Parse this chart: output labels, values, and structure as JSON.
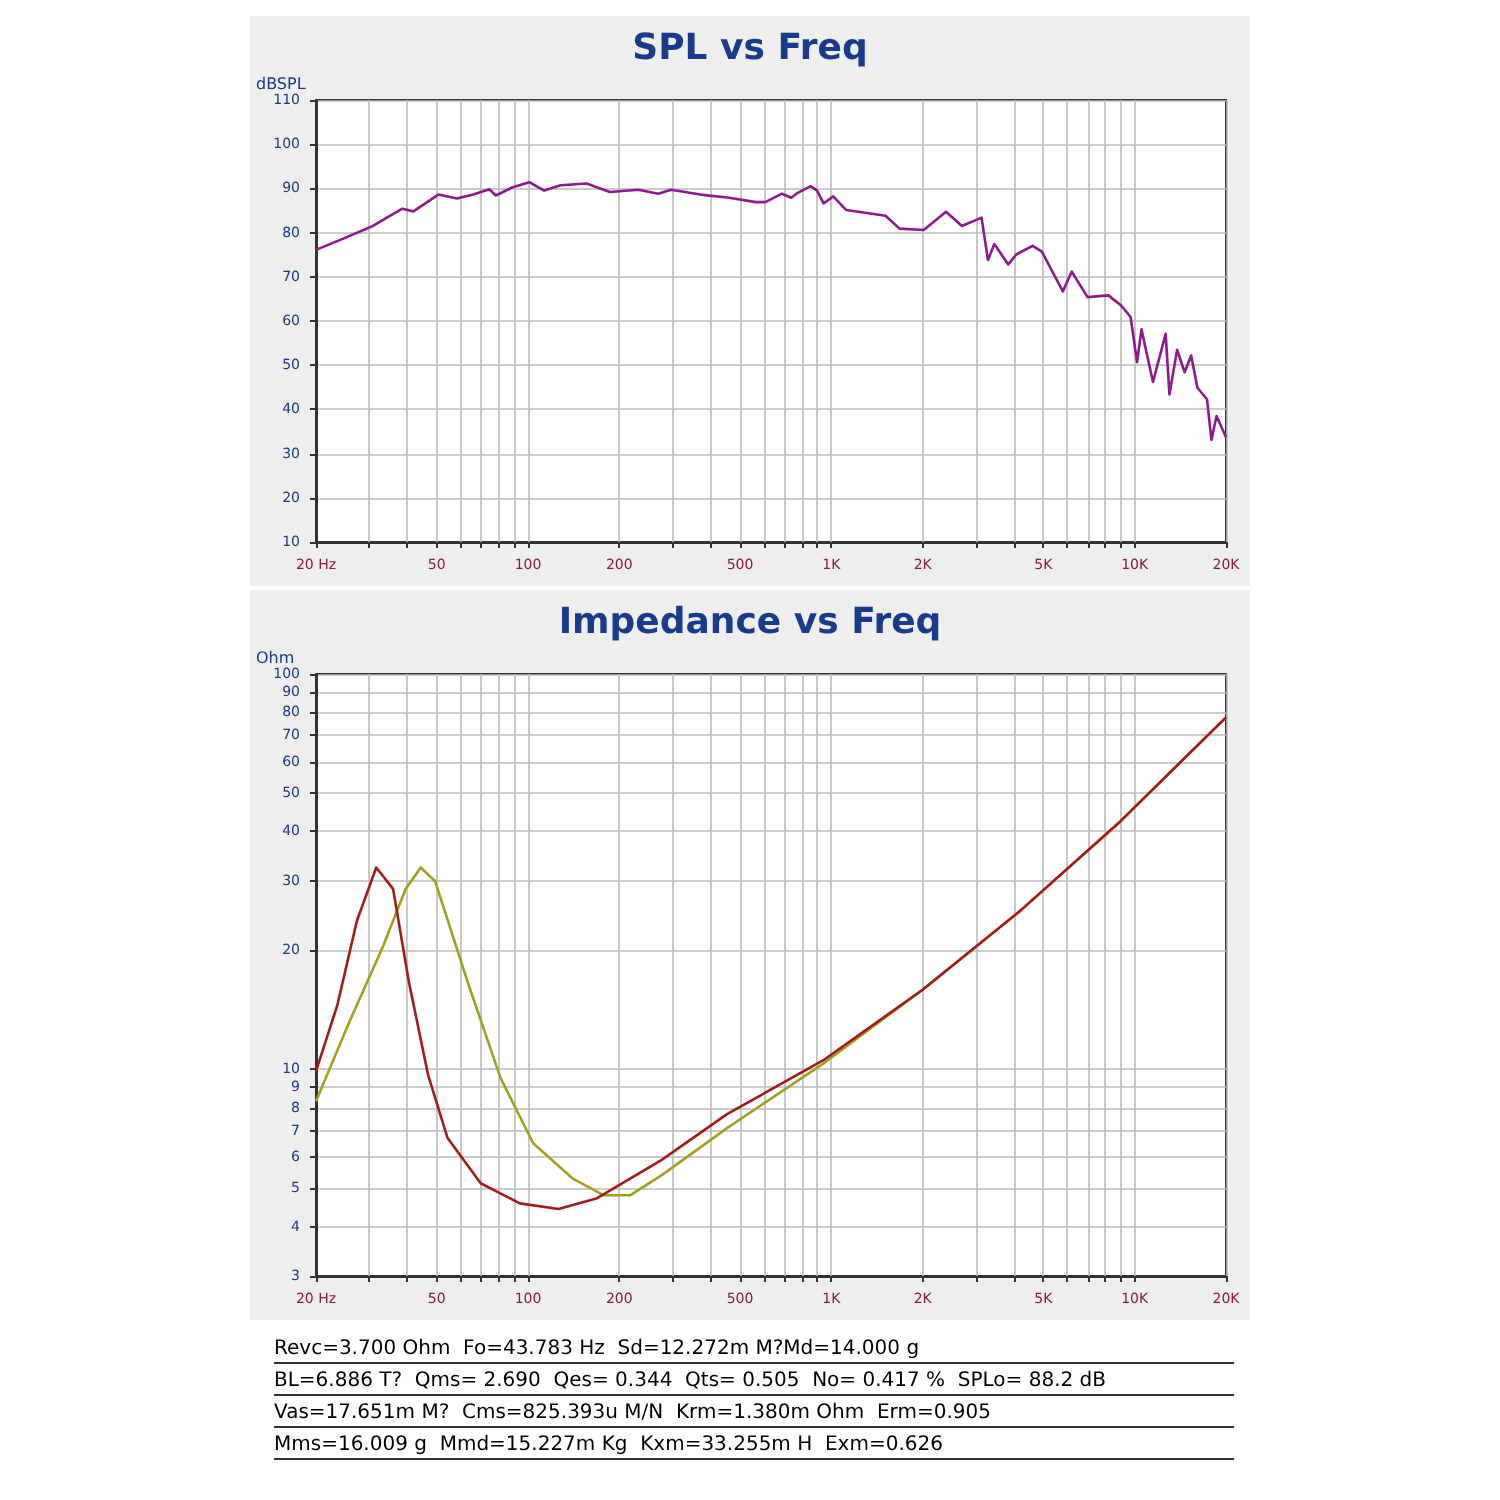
{
  "chart_data": [
    {
      "type": "line",
      "title": "SPL vs Freq",
      "ylabel": "dBSPL",
      "log": "x",
      "grid": true,
      "marker": "none",
      "line_style": "solid",
      "xlim": [
        20,
        20000
      ],
      "ylim": [
        10,
        110
      ],
      "xticks": [
        {
          "value": 20,
          "label": "20 Hz"
        },
        {
          "value": 30,
          "label": null
        },
        {
          "value": 40,
          "label": null
        },
        50,
        {
          "value": 60,
          "label": null
        },
        {
          "value": 70,
          "label": null
        },
        {
          "value": 80,
          "label": null
        },
        {
          "value": 90,
          "label": null
        },
        100,
        200,
        {
          "value": 300,
          "label": null
        },
        {
          "value": 400,
          "label": null
        },
        500,
        {
          "value": 600,
          "label": null
        },
        {
          "value": 700,
          "label": null
        },
        {
          "value": 800,
          "label": null
        },
        {
          "value": 900,
          "label": null
        },
        {
          "value": 1000,
          "label": "1K"
        },
        {
          "value": 2000,
          "label": "2K"
        },
        {
          "value": 3000,
          "label": null
        },
        {
          "value": 4000,
          "label": null
        },
        {
          "value": 5000,
          "label": "5K"
        },
        {
          "value": 6000,
          "label": null
        },
        {
          "value": 7000,
          "label": null
        },
        {
          "value": 8000,
          "label": null
        },
        {
          "value": 9000,
          "label": null
        },
        {
          "value": 10000,
          "label": "10K"
        },
        {
          "value": 20000,
          "label": "20K"
        }
      ],
      "yticks": [
        10,
        20,
        30,
        40,
        50,
        60,
        70,
        80,
        90,
        100,
        110
      ],
      "series": [
        {
          "color": "#8b1a8b",
          "x": [
            20,
            24.7,
            30.8,
            38.5,
            41.9,
            50.6,
            58.3,
            66,
            74.6,
            78.3,
            88.6,
            101,
            113,
            128,
            156,
            186,
            231,
            269,
            296,
            370,
            461,
            564,
            606,
            687,
            737,
            775,
            855,
            897,
            943,
            1014,
            1120,
            1508,
            1679,
            2016,
            2388,
            2694,
            3127,
            3283,
            3446,
            3830,
            4079,
            4606,
            4943,
            5797,
            6199,
            6989,
            8195,
            9020,
            9695,
            10180,
            10530,
            11490,
            12650,
            13020,
            13800,
            14610,
            15350,
            16100,
            17310,
            17910,
            18610,
            20000
          ],
          "values": [
            76.1,
            78.7,
            81.5,
            85.4,
            84.8,
            88.6,
            87.7,
            88.6,
            89.8,
            88.4,
            90.2,
            91.4,
            89.5,
            90.7,
            91.1,
            89.2,
            89.7,
            88.8,
            89.7,
            88.6,
            87.9,
            86.9,
            86.9,
            88.8,
            87.9,
            89,
            90.5,
            89.5,
            86.6,
            88.2,
            85.1,
            83.8,
            80.9,
            80.6,
            84.7,
            81.5,
            83.4,
            73.8,
            77.4,
            72.8,
            75.1,
            77,
            75.7,
            66.7,
            71.2,
            65.4,
            65.8,
            63.5,
            60.9,
            50.7,
            58.1,
            46.2,
            57.1,
            43.4,
            53.5,
            48.4,
            52.2,
            44.9,
            42.3,
            33.1,
            38.5,
            33.7
          ]
        }
      ]
    },
    {
      "type": "line",
      "title": "Impedance vs Freq",
      "ylabel": "Ohm",
      "log": "xy",
      "grid": true,
      "marker": "none",
      "line_style": "solid",
      "xlim": [
        20,
        20000
      ],
      "ylim": [
        3,
        100
      ],
      "xticks": [
        {
          "value": 20,
          "label": "20 Hz"
        },
        {
          "value": 30,
          "label": null
        },
        {
          "value": 40,
          "label": null
        },
        50,
        {
          "value": 60,
          "label": null
        },
        {
          "value": 70,
          "label": null
        },
        {
          "value": 80,
          "label": null
        },
        {
          "value": 90,
          "label": null
        },
        100,
        200,
        {
          "value": 300,
          "label": null
        },
        {
          "value": 400,
          "label": null
        },
        500,
        {
          "value": 600,
          "label": null
        },
        {
          "value": 700,
          "label": null
        },
        {
          "value": 800,
          "label": null
        },
        {
          "value": 900,
          "label": null
        },
        {
          "value": 1000,
          "label": "1K"
        },
        {
          "value": 2000,
          "label": "2K"
        },
        {
          "value": 3000,
          "label": null
        },
        {
          "value": 4000,
          "label": null
        },
        {
          "value": 5000,
          "label": "5K"
        },
        {
          "value": 6000,
          "label": null
        },
        {
          "value": 7000,
          "label": null
        },
        {
          "value": 8000,
          "label": null
        },
        {
          "value": 9000,
          "label": null
        },
        {
          "value": 10000,
          "label": "10K"
        },
        {
          "value": 20000,
          "label": "20K"
        }
      ],
      "yticks": [
        3,
        4,
        5,
        6,
        7,
        8,
        9,
        10,
        20,
        30,
        40,
        50,
        60,
        70,
        80,
        90,
        100
      ],
      "series": [
        {
          "color": "#a0a020",
          "x": [
            20,
            25.9,
            33.2,
            39.5,
            44.3,
            49.4,
            63.3,
            81.2,
            104,
            140,
            178,
            217,
            276,
            453,
            951,
            1999,
            4200,
            8830,
            20000
          ],
          "values": [
            8.3,
            13.3,
            20.4,
            28.6,
            32.4,
            29.9,
            16.6,
            9.5,
            6.5,
            5.3,
            4.8,
            4.8,
            5.4,
            7.1,
            10.4,
            15.9,
            25.2,
            41.9,
            77.7
          ]
        },
        {
          "color": "#a01c1c",
          "x": [
            20,
            23.5,
            27.3,
            31.6,
            35.9,
            40.5,
            46.8,
            54.3,
            69.8,
            93.9,
            126,
            169,
            276,
            453,
            951,
            1999,
            4200,
            8830,
            20000
          ],
          "values": [
            9.9,
            14.5,
            23.8,
            32.4,
            28.6,
            16.6,
            9.7,
            6.7,
            5.15,
            4.58,
            4.43,
            4.72,
            5.9,
            7.7,
            10.6,
            15.9,
            25.2,
            41.9,
            77.7
          ]
        }
      ]
    },
    {
      "type": "other",
      "annotations": [
        "Revc=3.700 Ohm  Fo=43.783 Hz  Sd=12.272m M?Md=14.000 g",
        "BL=6.886 T?  Qms= 2.690  Qes= 0.344  Qts= 0.505  No= 0.417 %  SPLo= 88.2 dB",
        "Vas=17.651m M?  Cms=825.393u M/N  Krm=1.380m Ohm  Erm=0.905",
        "Mms=16.009 g  Mmd=15.227m Kg  Kxm=33.255m H  Exm=0.626"
      ]
    }
  ]
}
